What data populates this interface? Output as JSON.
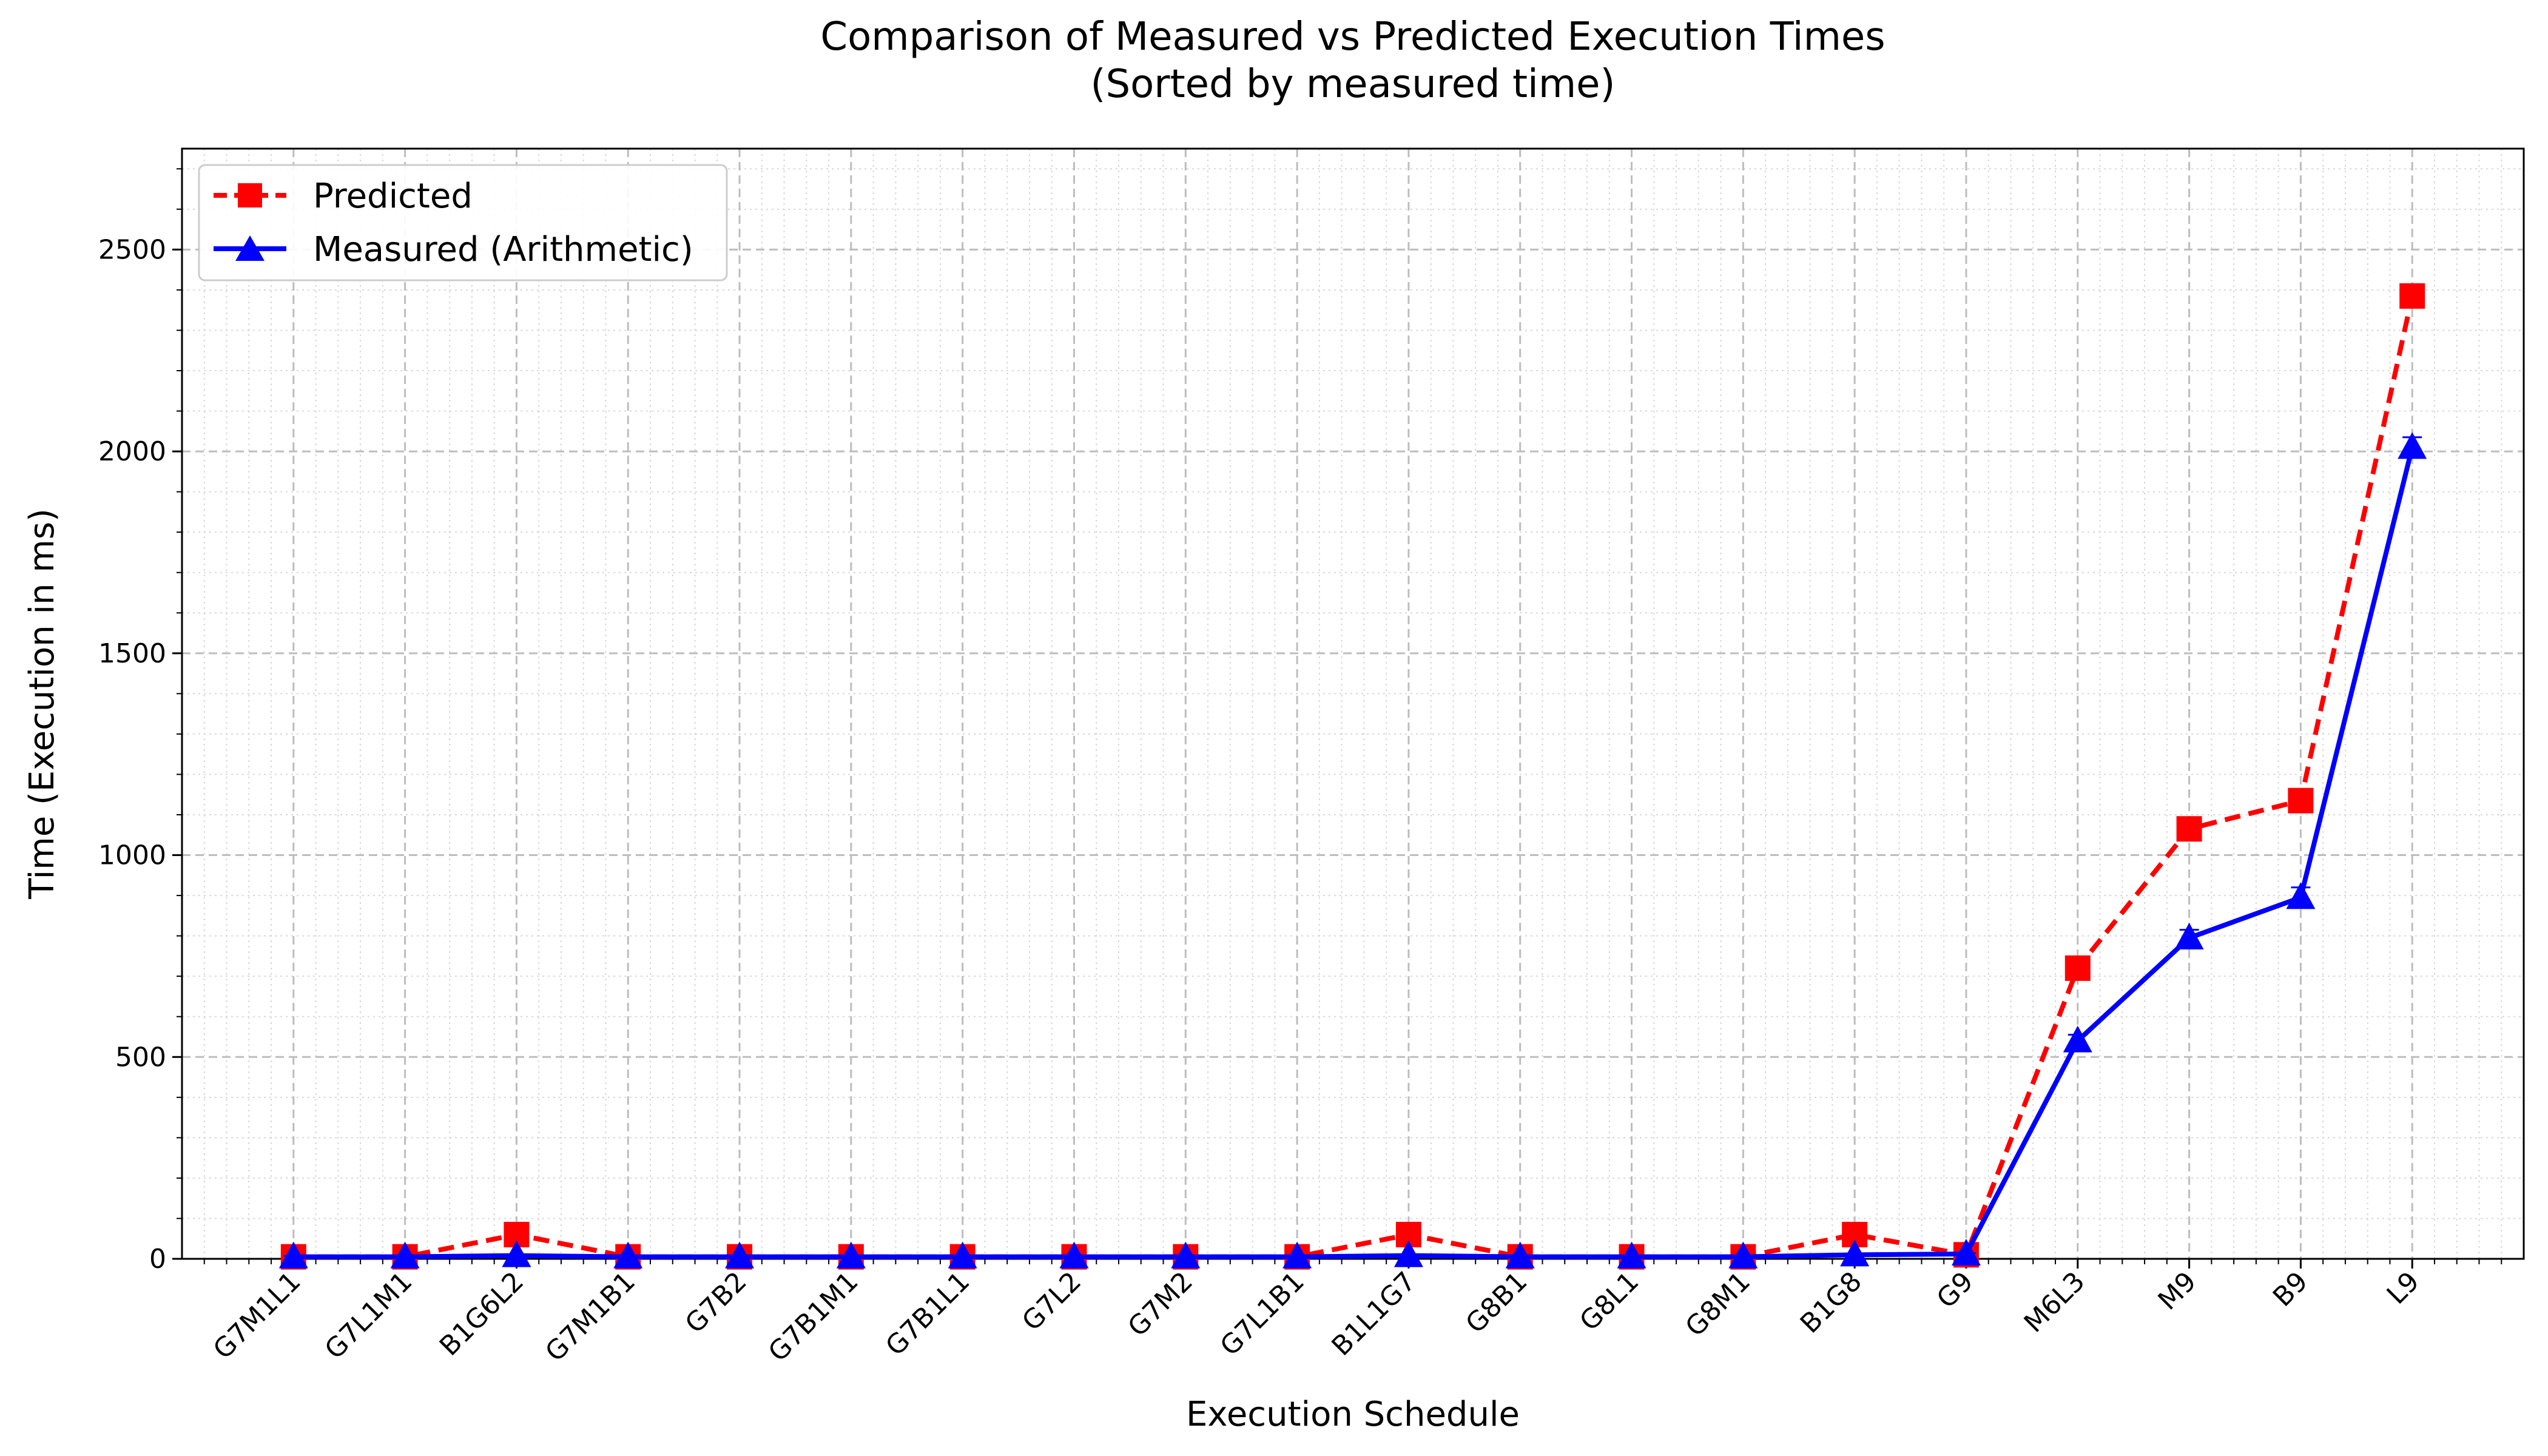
{
  "chart_data": {
    "type": "line",
    "title": "Comparison of Measured vs Predicted Execution Times",
    "subtitle": "(Sorted by measured time)",
    "xlabel": "Execution Schedule",
    "ylabel": "Time (Execution in ms)",
    "ylim": [
      0,
      2750
    ],
    "yticks": [
      0,
      500,
      1000,
      1500,
      2000,
      2500
    ],
    "grid": true,
    "legend_position": "top-left",
    "categories": [
      "G7M1L1",
      "G7L1M1",
      "B1G6L2",
      "G7M1B1",
      "G7B2",
      "G7B1M1",
      "G7B1L1",
      "G7L2",
      "G7M2",
      "G7L1B1",
      "B1L1G7",
      "G8B1",
      "G8L1",
      "G8M1",
      "B1G8",
      "G9",
      "M6L3",
      "M9",
      "B9",
      "L9"
    ],
    "series": [
      {
        "name": "Predicted",
        "color": "#ff0000",
        "line_style": "dashed",
        "marker": "square",
        "values": [
          5,
          5,
          60,
          5,
          5,
          5,
          5,
          5,
          5,
          5,
          60,
          5,
          5,
          5,
          60,
          10,
          720,
          1065,
          1135,
          2385
        ]
      },
      {
        "name": "Measured (Arithmetic)",
        "color": "#0000ff",
        "line_style": "solid",
        "marker": "triangle",
        "values": [
          5,
          5,
          8,
          5,
          5,
          5,
          5,
          5,
          5,
          5,
          8,
          5,
          5,
          5,
          10,
          12,
          540,
          795,
          895,
          2010
        ],
        "error": [
          2,
          2,
          2,
          2,
          2,
          2,
          2,
          2,
          2,
          2,
          2,
          2,
          2,
          2,
          2,
          2,
          15,
          20,
          25,
          25
        ]
      }
    ]
  }
}
